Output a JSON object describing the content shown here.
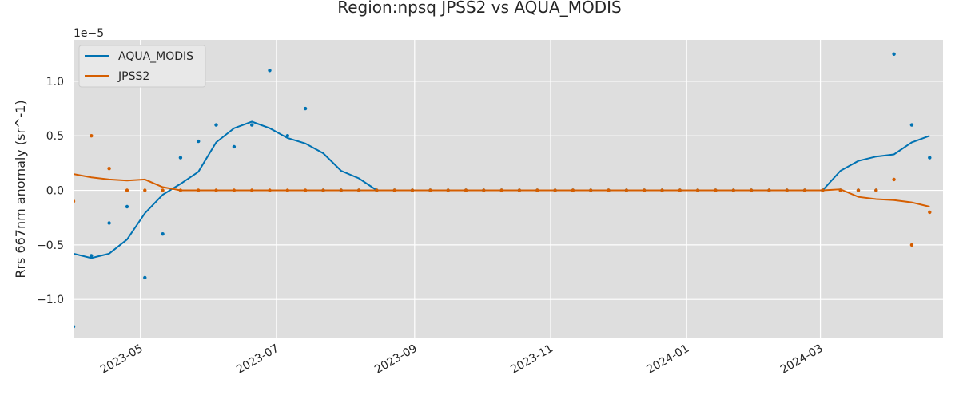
{
  "chart_data": {
    "type": "line",
    "title": "Region:npsq JPSS2 vs AQUA_MODIS",
    "xlabel": "",
    "ylabel": "Rrs 667nm anomaly (sr^-1)",
    "y_offset_text": "1e−5",
    "y_scale_exponent": -5,
    "xlim": [
      "2023-04-01",
      "2024-04-25"
    ],
    "ylim": [
      -1.35,
      1.38
    ],
    "x_tick_labels": [
      {
        "date": "2023-05-01",
        "label": "2023-05"
      },
      {
        "date": "2023-07-01",
        "label": "2023-07"
      },
      {
        "date": "2023-09-01",
        "label": "2023-09"
      },
      {
        "date": "2023-11-01",
        "label": "2023-11"
      },
      {
        "date": "2024-01-01",
        "label": "2024-01"
      },
      {
        "date": "2024-03-01",
        "label": "2024-03"
      }
    ],
    "y_ticks": [
      {
        "value": -1.0,
        "label": "−1.0"
      },
      {
        "value": -0.5,
        "label": "−0.5"
      },
      {
        "value": 0.0,
        "label": "0.0"
      },
      {
        "value": 0.5,
        "label": "0.5"
      },
      {
        "value": 1.0,
        "label": "1.0"
      }
    ],
    "grid": true,
    "legend_position": "top-left",
    "background": "#dedede",
    "x": [
      "2023-04-01",
      "2023-04-09",
      "2023-04-17",
      "2023-04-25",
      "2023-05-03",
      "2023-05-11",
      "2023-05-19",
      "2023-05-27",
      "2023-06-04",
      "2023-06-12",
      "2023-06-20",
      "2023-06-28",
      "2023-07-06",
      "2023-07-14",
      "2023-07-22",
      "2023-07-30",
      "2023-08-07",
      "2023-08-15",
      "2023-08-23",
      "2023-08-31",
      "2023-09-08",
      "2023-09-16",
      "2023-09-24",
      "2023-10-02",
      "2023-10-10",
      "2023-10-18",
      "2023-10-26",
      "2023-11-03",
      "2023-11-11",
      "2023-11-19",
      "2023-11-27",
      "2023-12-05",
      "2023-12-13",
      "2023-12-21",
      "2023-12-29",
      "2024-01-06",
      "2024-01-14",
      "2024-01-22",
      "2024-01-30",
      "2024-02-07",
      "2024-02-15",
      "2024-02-23",
      "2024-03-02",
      "2024-03-10",
      "2024-03-18",
      "2024-03-26",
      "2024-04-03",
      "2024-04-11",
      "2024-04-19"
    ],
    "series": [
      {
        "name": "AQUA_MODIS",
        "color": "#0072b2",
        "line": [
          -0.58,
          -0.62,
          -0.58,
          -0.45,
          -0.21,
          -0.04,
          0.06,
          0.17,
          0.44,
          0.57,
          0.63,
          0.57,
          0.48,
          0.43,
          0.34,
          0.18,
          0.11,
          0.0,
          0,
          0,
          0,
          0,
          0,
          0,
          0,
          0,
          0,
          0,
          0,
          0,
          0,
          0,
          0,
          0,
          0,
          0,
          0,
          0,
          0,
          0,
          0,
          0,
          0,
          0.18,
          0.27,
          0.31,
          0.33,
          0.44,
          0.5
        ],
        "points": [
          -1.25,
          -0.6,
          -0.3,
          -0.15,
          -0.8,
          -0.4,
          0.3,
          0.45,
          0.6,
          0.4,
          0.6,
          1.1,
          0.5,
          0.75,
          0,
          0,
          0,
          0,
          0,
          0,
          0,
          0,
          0,
          0,
          0,
          0,
          0,
          0,
          0,
          0,
          0,
          0,
          0,
          0,
          0,
          0,
          0,
          0,
          0,
          0,
          0,
          0,
          0,
          0,
          0,
          0,
          1.25,
          0.6,
          0.3
        ]
      },
      {
        "name": "JPSS2",
        "color": "#d55e00",
        "line": [
          0.15,
          0.12,
          0.1,
          0.09,
          0.1,
          0.03,
          0.0,
          0,
          0,
          0,
          0,
          0,
          0,
          0,
          0,
          0,
          0,
          0,
          0,
          0,
          0,
          0,
          0,
          0,
          0,
          0,
          0,
          0,
          0,
          0,
          0,
          0,
          0,
          0,
          0,
          0,
          0,
          0,
          0,
          0,
          0,
          0,
          0,
          0.01,
          -0.06,
          -0.08,
          -0.09,
          -0.11,
          -0.15
        ],
        "points": [
          -0.1,
          0.5,
          0.2,
          0,
          0,
          0,
          0,
          0,
          0,
          0,
          0,
          0,
          0,
          0,
          0,
          0,
          0,
          0,
          0,
          0,
          0,
          0,
          0,
          0,
          0,
          0,
          0,
          0,
          0,
          0,
          0,
          0,
          0,
          0,
          0,
          0,
          0,
          0,
          0,
          0,
          0,
          0,
          0,
          0,
          0,
          0,
          0.1,
          -0.5,
          -0.2
        ]
      }
    ]
  }
}
